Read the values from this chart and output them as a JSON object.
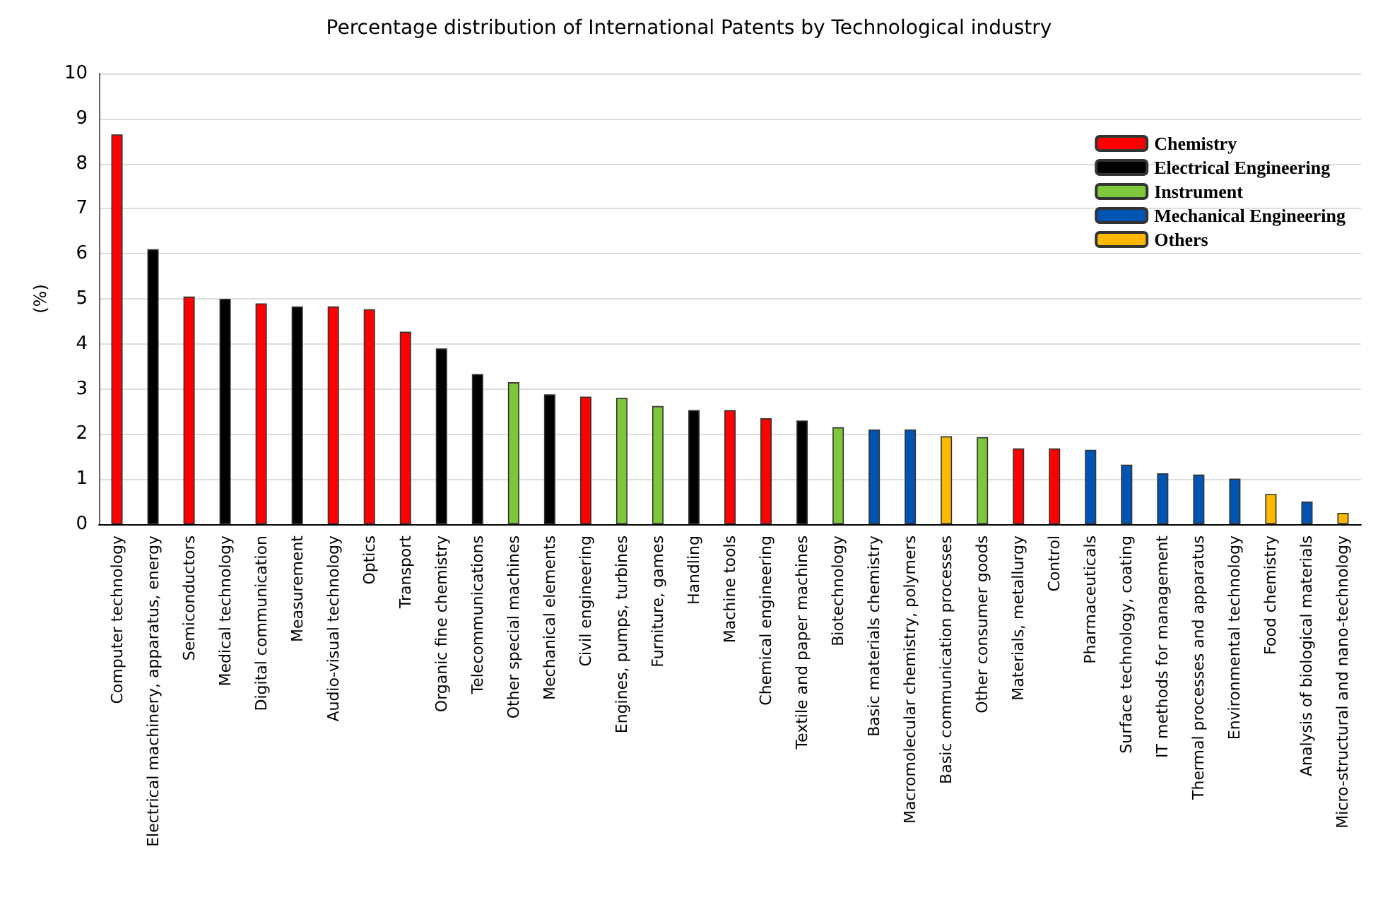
{
  "chart_data": {
    "type": "bar",
    "title": "Percentage distribution of International Patents by Technological industry",
    "ylabel": "(%)",
    "categories": [
      "Computer technology",
      "Electrical machinery, apparatus, energy",
      "Semiconductors",
      "Medical technology",
      "Digital communication",
      "Measurement",
      "Audio-visual technology",
      "Optics",
      "Transport",
      "Organic fine chemistry",
      "Telecommunications",
      "Other special machines",
      "Mechanical elements",
      "Civil engineering",
      "Engines, pumps, turbines",
      "Furniture, games",
      "Handling",
      "Machine tools",
      "Chemical engineering",
      "Textile and paper machines",
      "Biotechnology",
      "Basic materials chemistry",
      "Macromolecular chemistry, polymers",
      "Basic communication processes",
      "Other consumer goods",
      "Materials, metallurgy",
      "Control",
      "Pharmaceuticals",
      "Surface technology, coating",
      "IT methods for management",
      "Thermal processes and apparatus",
      "Environmental technology",
      "Food chemistry",
      "Analysis of biological materials",
      "Micro-structural and nano-technology"
    ],
    "series": [
      {
        "name": "Chemistry",
        "color": "#ff0000",
        "values": [
          8.65,
          null,
          5.05,
          null,
          4.9,
          null,
          4.83,
          4.77,
          4.27,
          null,
          null,
          null,
          null,
          2.83,
          null,
          null,
          null,
          2.53,
          2.35,
          null,
          null,
          null,
          null,
          null,
          null,
          1.68,
          1.68,
          null,
          null,
          null,
          null,
          null,
          null,
          null,
          null
        ]
      },
      {
        "name": "Electrical Engineering",
        "color": "#000000",
        "values": [
          null,
          6.1,
          null,
          5.0,
          null,
          4.83,
          null,
          null,
          null,
          3.9,
          3.33,
          null,
          2.88,
          null,
          null,
          null,
          2.53,
          null,
          null,
          2.3,
          null,
          null,
          null,
          null,
          null,
          null,
          null,
          null,
          null,
          null,
          null,
          null,
          null,
          null,
          null
        ]
      },
      {
        "name": "Instrument",
        "color": "#7dc73b",
        "values": [
          null,
          null,
          null,
          null,
          null,
          null,
          null,
          null,
          null,
          null,
          null,
          3.15,
          null,
          null,
          2.8,
          2.62,
          null,
          null,
          null,
          null,
          2.15,
          null,
          null,
          null,
          1.93,
          null,
          null,
          null,
          null,
          null,
          null,
          null,
          null,
          null,
          null
        ]
      },
      {
        "name": "Mechanical Engineering",
        "color": "#0055b3",
        "values": [
          null,
          null,
          null,
          null,
          null,
          null,
          null,
          null,
          null,
          null,
          null,
          null,
          null,
          null,
          null,
          null,
          null,
          null,
          null,
          null,
          null,
          2.1,
          2.1,
          null,
          null,
          null,
          null,
          1.65,
          1.32,
          1.13,
          1.1,
          1.01,
          null,
          0.5,
          null
        ]
      },
      {
        "name": "Others",
        "color": "#ffb800",
        "values": [
          null,
          null,
          null,
          null,
          null,
          null,
          null,
          null,
          null,
          null,
          null,
          null,
          null,
          null,
          null,
          null,
          null,
          null,
          null,
          null,
          null,
          null,
          null,
          1.95,
          null,
          null,
          null,
          null,
          null,
          null,
          null,
          null,
          0.67,
          null,
          0.25
        ]
      }
    ],
    "ylim": [
      0,
      10
    ],
    "yticks": [
      0,
      1,
      2,
      3,
      4,
      5,
      6,
      7,
      8,
      9,
      10
    ],
    "grid": "y",
    "legend": "top right"
  }
}
